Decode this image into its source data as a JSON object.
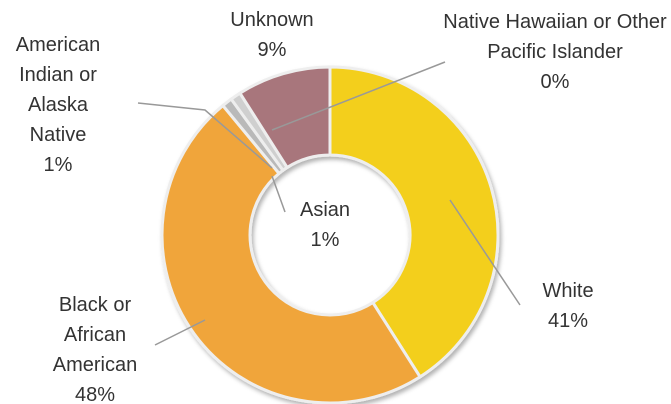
{
  "chart_data": {
    "type": "donut",
    "categories": [
      "White",
      "Black or African American",
      "American Indian or Alaska Native",
      "Asian",
      "Unknown",
      "Native Hawaiian or Other Pacific Islander"
    ],
    "values": [
      41,
      48,
      1,
      1,
      9,
      0
    ],
    "value_labels": [
      "41%",
      "48%",
      "1%",
      "1%",
      "9%",
      "0%"
    ],
    "colors": [
      "#f3cf1c",
      "#f0a53a",
      "#b9b9b9",
      "#cfcfcf",
      "#a8767c",
      "#c8c8c8"
    ]
  }
}
